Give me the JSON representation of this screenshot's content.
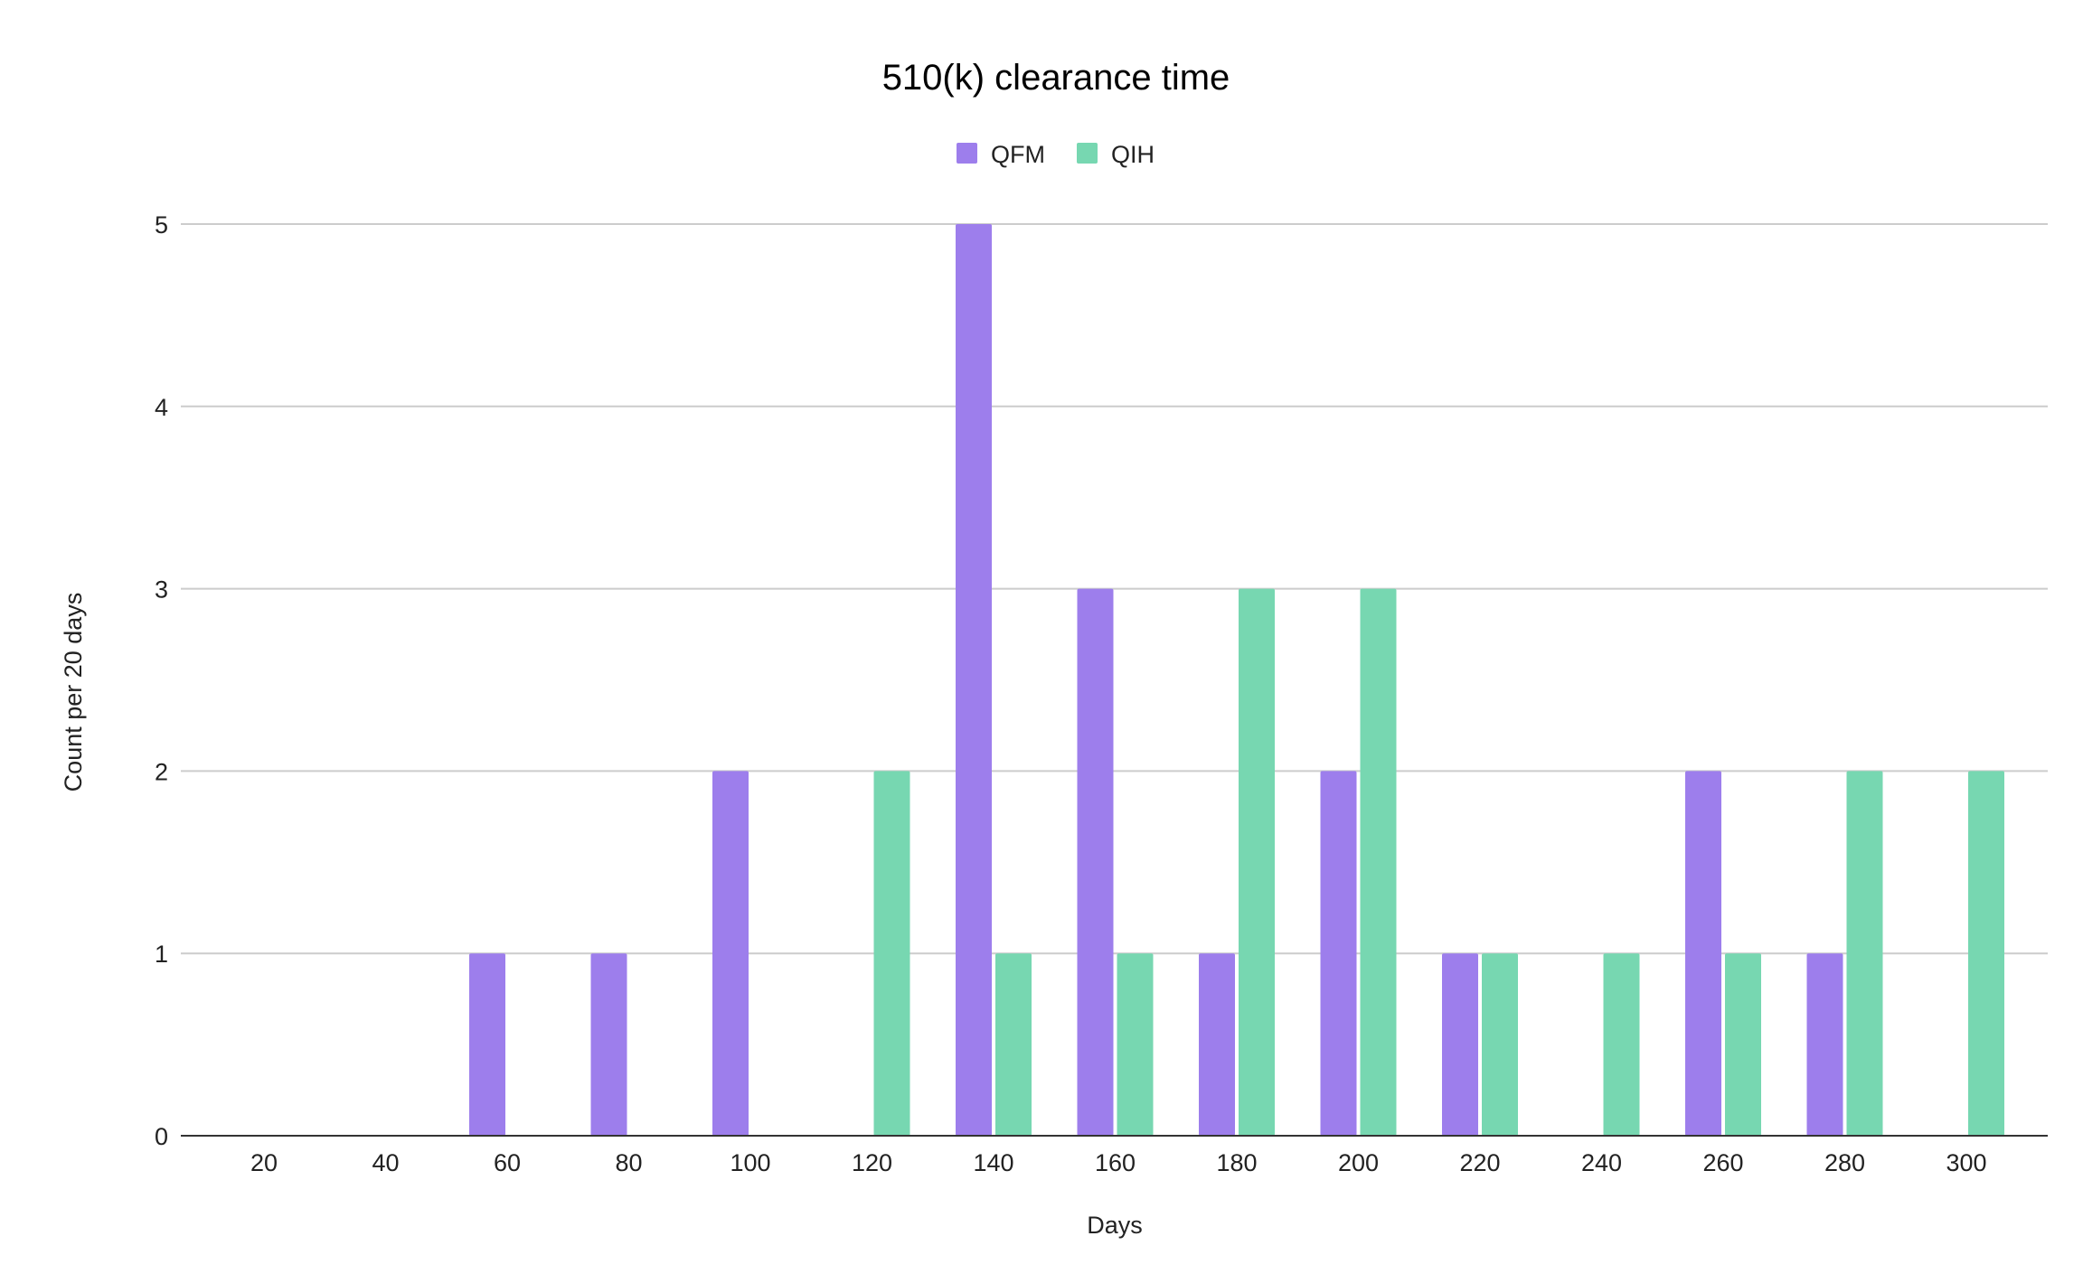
{
  "chart_data": {
    "type": "bar",
    "title": "510(k) clearance time",
    "xlabel": "Days",
    "ylabel": "Count per 20 days",
    "categories": [
      "20",
      "40",
      "60",
      "80",
      "100",
      "120",
      "140",
      "160",
      "180",
      "200",
      "220",
      "240",
      "260",
      "280",
      "300"
    ],
    "series": [
      {
        "name": "QFM",
        "color": "#9d7eec",
        "values": [
          0,
          0,
          1,
          1,
          2,
          0,
          5,
          3,
          1,
          2,
          1,
          0,
          2,
          1,
          0
        ]
      },
      {
        "name": "QIH",
        "color": "#77d7b1",
        "values": [
          0,
          0,
          0,
          0,
          0,
          2,
          1,
          1,
          3,
          3,
          1,
          1,
          1,
          2,
          2
        ]
      }
    ],
    "yticks": [
      "0",
      "1",
      "2",
      "3",
      "4",
      "5"
    ],
    "ylim": [
      0,
      5
    ],
    "grid": true,
    "legend_position": "top-center"
  }
}
